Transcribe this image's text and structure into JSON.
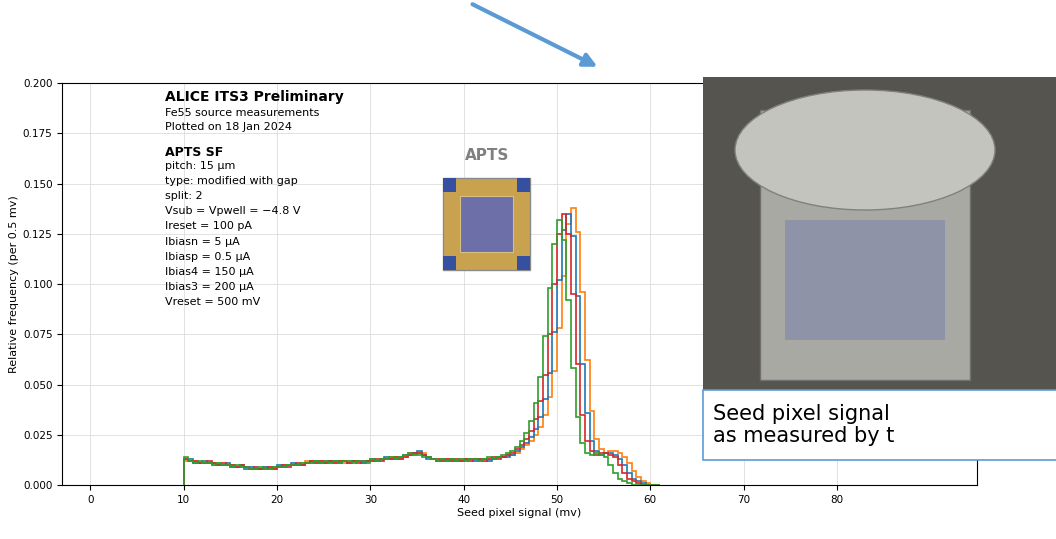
{
  "chart_data": {
    "type": "histogram",
    "xlabel": "Seed pixel signal (mv)",
    "ylabel": "Relative frequency (per 0.5 mv)",
    "xlim": [
      -3,
      95
    ],
    "ylim": [
      0,
      0.2
    ],
    "xticks": [
      0,
      10,
      20,
      30,
      40,
      50,
      60,
      70,
      80
    ],
    "yticks": [
      {
        "value": 0,
        "label": "0.000"
      },
      {
        "value": 0.025,
        "label": "0.025"
      },
      {
        "value": 0.05,
        "label": "0.050"
      },
      {
        "value": 0.075,
        "label": "0.075"
      },
      {
        "value": 0.1,
        "label": "0.100"
      },
      {
        "value": 0.125,
        "label": "0.125"
      },
      {
        "value": 0.15,
        "label": "0.150"
      },
      {
        "value": 0.175,
        "label": "0.175"
      },
      {
        "value": 0.2,
        "label": "0.200"
      }
    ],
    "grid": true,
    "annotations": [
      "ALICE ITS3 Preliminary",
      "Fe55 source measurements",
      "Plotted on 18 Jan 2024",
      "APTS SF",
      "pitch: 15 µm",
      "type: modified with gap",
      "split: 2",
      "Vsub = Vpwell = −4.8 V",
      "Ireset = 100 pA",
      "Ibiasn = 5 µA",
      "Ibiasp = 0.5 µA",
      "Ibias4 = 150 µA",
      "Ibias3 = 200 µA",
      "Vreset = 500 mV"
    ],
    "chip_label": "APTS",
    "callout": "Seed pixel signal\nas measured by t",
    "bins": [
      10,
      10.5,
      11,
      11.5,
      12,
      12.5,
      13,
      13.5,
      14,
      14.5,
      15,
      15.5,
      16,
      16.5,
      17,
      17.5,
      18,
      18.5,
      19,
      19.5,
      20,
      20.5,
      21,
      21.5,
      22,
      22.5,
      23,
      23.5,
      24,
      24.5,
      25,
      25.5,
      26,
      26.5,
      27,
      27.5,
      28,
      28.5,
      29,
      29.5,
      30,
      30.5,
      31,
      31.5,
      32,
      32.5,
      33,
      33.5,
      34,
      34.5,
      35,
      35.5,
      36,
      36.5,
      37,
      37.5,
      38,
      38.5,
      39,
      39.5,
      40,
      40.5,
      41,
      41.5,
      42,
      42.5,
      43,
      43.5,
      44,
      44.5,
      45,
      45.5,
      46,
      46.5,
      47,
      47.5,
      48,
      48.5,
      49,
      49.5,
      50,
      50.5,
      51,
      51.5,
      52,
      52.5,
      53,
      53.5,
      54,
      54.5,
      55,
      55.5,
      56,
      56.5,
      57,
      57.5,
      58,
      58.5,
      59,
      59.5,
      60,
      60.5,
      61
    ],
    "series": [
      {
        "color": "#ff7f0e",
        "values": [
          0.012,
          0.012,
          0.012,
          0.011,
          0.011,
          0.011,
          0.01,
          0.011,
          0.01,
          0.01,
          0.01,
          0.009,
          0.009,
          0.009,
          0.008,
          0.008,
          0.008,
          0.009,
          0.009,
          0.008,
          0.009,
          0.01,
          0.01,
          0.01,
          0.01,
          0.011,
          0.012,
          0.011,
          0.011,
          0.012,
          0.012,
          0.011,
          0.011,
          0.012,
          0.011,
          0.012,
          0.012,
          0.012,
          0.011,
          0.012,
          0.012,
          0.012,
          0.013,
          0.013,
          0.014,
          0.014,
          0.013,
          0.014,
          0.016,
          0.015,
          0.016,
          0.016,
          0.014,
          0.013,
          0.012,
          0.012,
          0.013,
          0.012,
          0.012,
          0.013,
          0.012,
          0.013,
          0.013,
          0.012,
          0.013,
          0.013,
          0.013,
          0.014,
          0.014,
          0.015,
          0.015,
          0.016,
          0.018,
          0.02,
          0.022,
          0.025,
          0.029,
          0.035,
          0.044,
          0.057,
          0.078,
          0.104,
          0.13,
          0.138,
          0.126,
          0.096,
          0.062,
          0.037,
          0.023,
          0.018,
          0.016,
          0.017,
          0.017,
          0.016,
          0.014,
          0.011,
          0.007,
          0.004,
          0.002,
          0.001,
          0,
          0
        ]
      },
      {
        "color": "#1f77b4",
        "values": [
          0.013,
          0.013,
          0.011,
          0.011,
          0.012,
          0.011,
          0.011,
          0.01,
          0.01,
          0.011,
          0.009,
          0.009,
          0.01,
          0.008,
          0.009,
          0.008,
          0.008,
          0.009,
          0.008,
          0.009,
          0.01,
          0.009,
          0.01,
          0.011,
          0.01,
          0.01,
          0.011,
          0.012,
          0.012,
          0.011,
          0.011,
          0.012,
          0.012,
          0.011,
          0.012,
          0.011,
          0.012,
          0.012,
          0.011,
          0.012,
          0.013,
          0.012,
          0.013,
          0.014,
          0.013,
          0.013,
          0.014,
          0.015,
          0.015,
          0.016,
          0.017,
          0.015,
          0.013,
          0.013,
          0.012,
          0.013,
          0.012,
          0.013,
          0.012,
          0.012,
          0.013,
          0.013,
          0.012,
          0.013,
          0.013,
          0.012,
          0.013,
          0.014,
          0.014,
          0.014,
          0.015,
          0.017,
          0.019,
          0.021,
          0.024,
          0.028,
          0.034,
          0.043,
          0.056,
          0.076,
          0.102,
          0.127,
          0.135,
          0.124,
          0.094,
          0.06,
          0.036,
          0.022,
          0.017,
          0.015,
          0.016,
          0.016,
          0.015,
          0.013,
          0.01,
          0.006,
          0.003,
          0.002,
          0.001,
          0,
          0,
          0
        ]
      },
      {
        "color": "#d62728",
        "values": [
          0.013,
          0.012,
          0.012,
          0.011,
          0.011,
          0.012,
          0.011,
          0.01,
          0.011,
          0.01,
          0.01,
          0.009,
          0.01,
          0.009,
          0.008,
          0.009,
          0.008,
          0.008,
          0.009,
          0.008,
          0.009,
          0.01,
          0.009,
          0.01,
          0.011,
          0.01,
          0.011,
          0.012,
          0.011,
          0.012,
          0.011,
          0.012,
          0.011,
          0.012,
          0.012,
          0.011,
          0.012,
          0.011,
          0.012,
          0.012,
          0.012,
          0.013,
          0.012,
          0.013,
          0.013,
          0.014,
          0.013,
          0.014,
          0.015,
          0.016,
          0.016,
          0.015,
          0.014,
          0.013,
          0.013,
          0.012,
          0.013,
          0.012,
          0.013,
          0.012,
          0.013,
          0.012,
          0.013,
          0.013,
          0.012,
          0.013,
          0.014,
          0.013,
          0.014,
          0.015,
          0.016,
          0.018,
          0.02,
          0.023,
          0.027,
          0.033,
          0.042,
          0.055,
          0.075,
          0.1,
          0.125,
          0.135,
          0.125,
          0.095,
          0.06,
          0.035,
          0.022,
          0.017,
          0.015,
          0.016,
          0.016,
          0.015,
          0.014,
          0.01,
          0.006,
          0.003,
          0.002,
          0.001,
          0,
          0,
          0,
          0
        ]
      },
      {
        "color": "#2ca02c",
        "values": [
          0.014,
          0.012,
          0.011,
          0.012,
          0.011,
          0.011,
          0.01,
          0.011,
          0.01,
          0.01,
          0.009,
          0.01,
          0.009,
          0.009,
          0.008,
          0.008,
          0.009,
          0.008,
          0.008,
          0.009,
          0.009,
          0.009,
          0.01,
          0.01,
          0.01,
          0.011,
          0.011,
          0.011,
          0.012,
          0.011,
          0.012,
          0.011,
          0.012,
          0.011,
          0.012,
          0.012,
          0.011,
          0.012,
          0.012,
          0.011,
          0.013,
          0.012,
          0.013,
          0.013,
          0.014,
          0.013,
          0.014,
          0.015,
          0.016,
          0.015,
          0.015,
          0.014,
          0.014,
          0.013,
          0.012,
          0.013,
          0.012,
          0.013,
          0.012,
          0.013,
          0.012,
          0.013,
          0.013,
          0.012,
          0.013,
          0.014,
          0.013,
          0.014,
          0.015,
          0.016,
          0.017,
          0.019,
          0.022,
          0.026,
          0.032,
          0.041,
          0.054,
          0.074,
          0.098,
          0.12,
          0.132,
          0.122,
          0.092,
          0.058,
          0.034,
          0.021,
          0.016,
          0.015,
          0.016,
          0.015,
          0.014,
          0.01,
          0.006,
          0.003,
          0.002,
          0.001,
          0,
          0,
          0,
          0,
          0,
          0
        ]
      }
    ]
  }
}
